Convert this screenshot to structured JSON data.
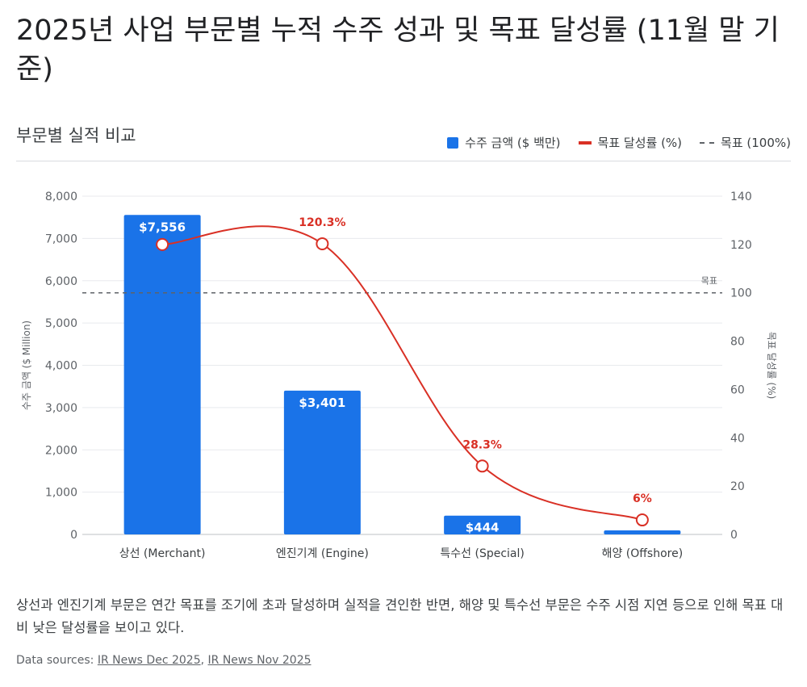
{
  "title": "2025년 사업 부문별 누적 수주 성과 및 목표 달성률 (11월 말 기준)",
  "subtitle": "부문별 실적 비교",
  "legend": {
    "bar": "수주 금액 ($ 백만)",
    "line": "목표 달성률 (%)",
    "target": "목표 (100%)"
  },
  "colors": {
    "bar": "#1a73e8",
    "line": "#d93025",
    "target": "#5f6368"
  },
  "chart_data": {
    "type": "bar",
    "categories": [
      "상선 (Merchant)",
      "엔진기계 (Engine)",
      "특수선 (Special)",
      "해양 (Offshore)"
    ],
    "series": [
      {
        "name": "수주 금액 ($ 백만)",
        "type": "bar",
        "axis": "left",
        "values": [
          7556,
          3401,
          444,
          95
        ],
        "labels": [
          "$7,556",
          "$3,401",
          "$444",
          ""
        ]
      },
      {
        "name": "목표 달성률 (%)",
        "type": "line",
        "axis": "right",
        "values": [
          120,
          120.3,
          28.3,
          6
        ],
        "labels": [
          "",
          "120.3%",
          "28.3%",
          "6%"
        ]
      }
    ],
    "ylabel_left": "수주 금액 ($ Million)",
    "ylabel_right": "목표 달성률 (%)",
    "ylim_left": [
      0,
      8000
    ],
    "yticks_left": [
      "0",
      "1,000",
      "2,000",
      "3,000",
      "4,000",
      "5,000",
      "6,000",
      "7,000",
      "8,000"
    ],
    "ylim_right": [
      0,
      140
    ],
    "yticks_right": [
      "0",
      "20",
      "40",
      "60",
      "80",
      "100",
      "120",
      "140"
    ],
    "target_line": {
      "value": 100,
      "label": "목표"
    },
    "grid": true,
    "legend_position": "top-right"
  },
  "caption": "상선과 엔진기계 부문은 연간 목표를 조기에 초과 달성하며 실적을 견인한 반면, 해양 및 특수선 부문은 수주 시점 지연 등으로 인해 목표 대비 낮은 달성률을 보이고 있다.",
  "sources": {
    "label": "Data sources:",
    "links": [
      "IR News Dec 2025",
      "IR News Nov 2025"
    ]
  }
}
